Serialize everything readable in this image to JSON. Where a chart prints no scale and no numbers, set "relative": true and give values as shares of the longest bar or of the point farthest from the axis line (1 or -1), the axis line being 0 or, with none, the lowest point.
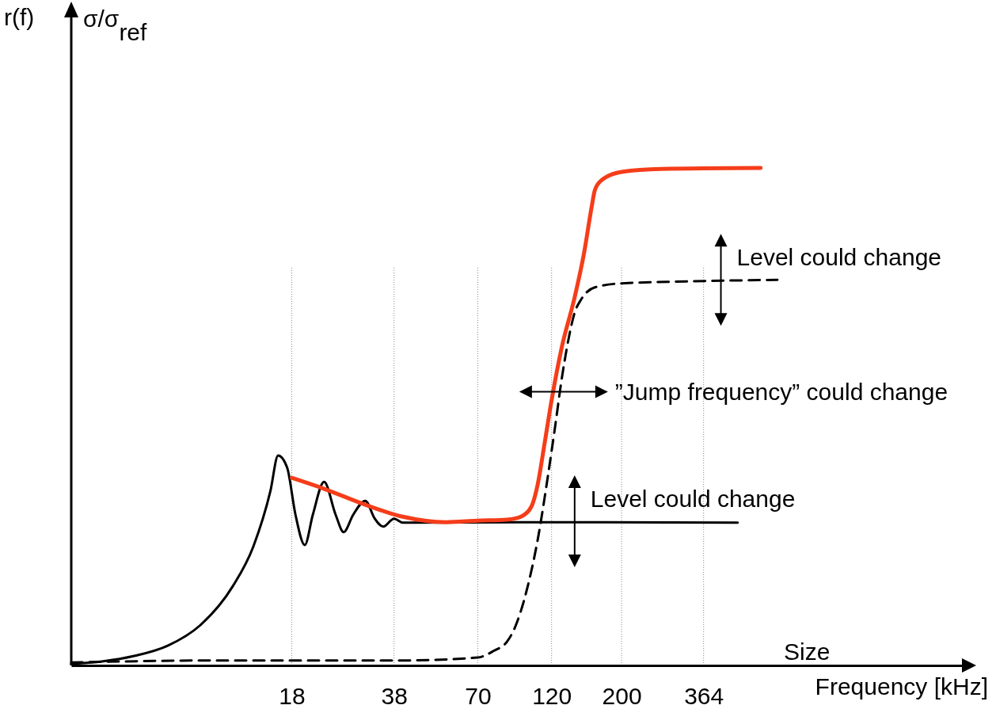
{
  "chart_data": {
    "type": "line",
    "relative": true,
    "log": "x",
    "xlabel": "Frequency [kHz]",
    "xlim": [
      3.6,
      2400
    ],
    "xticks": [
      18,
      38,
      70,
      120,
      200,
      364
    ],
    "grid": "x",
    "tick_labels": "x",
    "annotations": [
      "r(f)",
      "σ/σ$_{ref}$",
      "Size",
      {
        "text": "Level could change",
        "x": 413,
        "y": 0.775
      },
      {
        "text": "”Jump frequency” could change",
        "x": 131,
        "y": 0.55
      },
      {
        "text": "Level could change",
        "x": 142,
        "y": 0.29
      }
    ],
    "series": [
      {
        "color": "#000000",
        "line_style": "solid",
        "x": [
          3.6,
          4.5,
          5.7,
          7.3,
          9.2,
          11.7,
          13.6,
          15.4,
          16.3,
          17.4,
          18.5,
          19.8,
          21,
          22.8,
          24.8,
          26.3,
          28.2,
          30.8,
          33,
          35.1,
          38,
          40.5,
          55.5,
          100.8,
          467
        ],
        "values": [
          0.003,
          0.008,
          0.019,
          0.04,
          0.08,
          0.159,
          0.239,
          0.35,
          0.422,
          0.398,
          0.303,
          0.242,
          0.303,
          0.369,
          0.303,
          0.268,
          0.303,
          0.331,
          0.295,
          0.279,
          0.295,
          0.287,
          null,
          0.288,
          0.287
        ]
      },
      {
        "color": "#000000",
        "line_style": "dashed",
        "x": [
          3.6,
          10.5,
          40.5,
          70,
          78.5,
          86.7,
          91.2,
          100.8,
          108.6,
          116.9,
          123,
          129,
          135.5,
          142,
          149,
          164.5,
          200,
          324,
          624
        ],
        "values": [
          0.006,
          0.01,
          0.01,
          0.016,
          0.029,
          0.048,
          0.072,
          0.159,
          0.255,
          0.382,
          0.478,
          0.573,
          0.653,
          0.709,
          0.736,
          0.76,
          0.768,
          0.772,
          0.775
        ]
      },
      {
        "color": "#f53d1a",
        "line_style": "solid",
        "x": [
          18,
          22.8,
          30.8,
          40.5,
          55.5,
          70,
          86.7,
          95.9,
          103.3,
          108.6,
          114,
          120,
          129,
          142,
          152,
          161,
          164.5,
          172.6,
          200,
          267,
          552
        ],
        "values": [
          0.377,
          0.355,
          0.323,
          0.299,
          0.288,
          0.291,
          0.293,
          0.299,
          0.318,
          0.366,
          0.446,
          0.533,
          0.637,
          0.74,
          0.828,
          0.924,
          0.955,
          0.975,
          0.992,
          0.998,
          1
        ]
      }
    ]
  }
}
